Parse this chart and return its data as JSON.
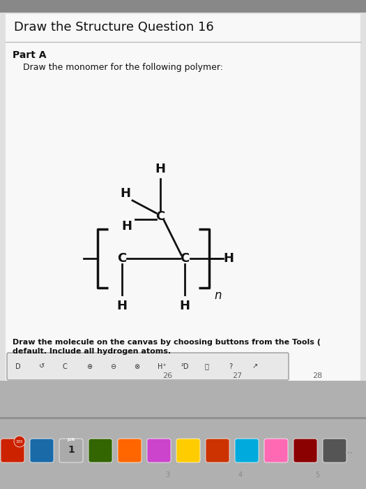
{
  "title": "Draw the Structure Question 16",
  "part_label": "Part A",
  "instruction": "Draw the monomer for the following polymer:",
  "bottom_text1": "Draw the molecule on the canvas by choosing buttons from the Tools (",
  "bottom_text2": "default. Include all hydrogen atoms.",
  "subscript_n": "n",
  "bg_top": "#c8c8c8",
  "bg_main": "#e0e0e0",
  "white": "#f8f8f8",
  "text_color": "#111111",
  "line_color": "#111111",
  "bracket_color": "#111111",
  "font_size_title": 13,
  "font_size_part": 10,
  "font_size_instr": 9,
  "font_size_atom": 13,
  "font_size_bottom": 8,
  "font_size_toolbar": 8,
  "font_size_n": 12
}
